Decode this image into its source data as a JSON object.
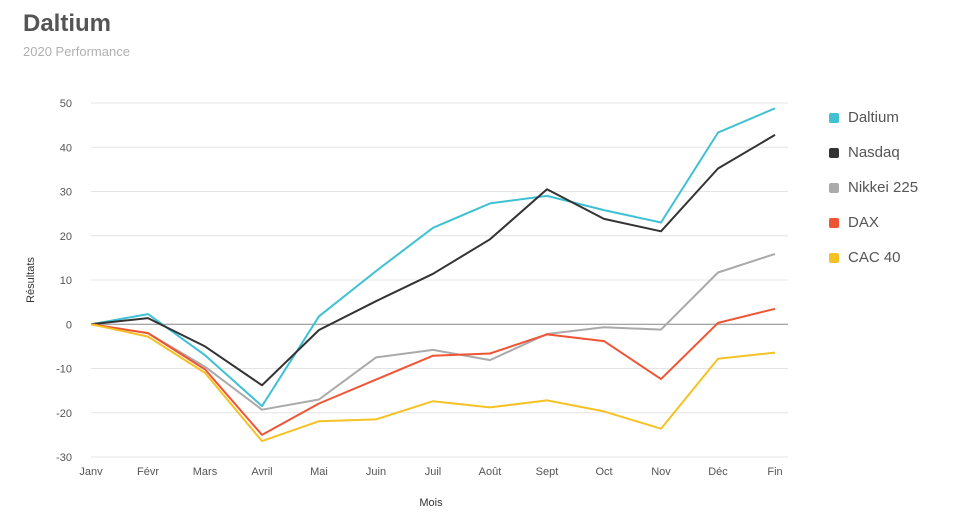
{
  "header": {
    "title": "Daltium",
    "subtitle": "2020 Performance"
  },
  "chart_data": {
    "type": "line",
    "title": "Daltium",
    "subtitle": "2020 Performance",
    "xlabel": "Mois",
    "ylabel": "Résultats",
    "categories": [
      "Janv",
      "Févr",
      "Mars",
      "Avril",
      "Mai",
      "Juin",
      "Juil",
      "Août",
      "Sept",
      "Oct",
      "Nov",
      "Déc",
      "Fin"
    ],
    "ylim": [
      -30,
      50
    ],
    "yticks": [
      50,
      40,
      30,
      20,
      10,
      0,
      -10,
      -20,
      -30
    ],
    "grid": true,
    "legend_position": "right",
    "series": [
      {
        "name": "Daltium",
        "color": "#3fc1d3",
        "values": [
          0,
          2.3,
          -7,
          -18.5,
          1.8,
          12,
          21.8,
          27.3,
          29,
          25.8,
          23,
          43.3,
          48.8
        ]
      },
      {
        "name": "Nasdaq",
        "color": "#333333",
        "values": [
          0,
          1.4,
          -5,
          -13.8,
          -1.3,
          5.2,
          11.4,
          19.2,
          30.5,
          23.8,
          21,
          35.2,
          42.8
        ]
      },
      {
        "name": "Nikkei 225",
        "color": "#aaaaaa",
        "values": [
          0,
          -2,
          -9.6,
          -19.3,
          -17,
          -7.5,
          -5.8,
          -8.1,
          -2.2,
          -0.7,
          -1.2,
          11.7,
          15.9
        ]
      },
      {
        "name": "DAX",
        "color": "#ef5535",
        "values": [
          0,
          -2,
          -10.2,
          -25,
          -17.9,
          -12.5,
          -7.1,
          -6.6,
          -2.3,
          -3.8,
          -12.4,
          0.3,
          3.5
        ]
      },
      {
        "name": "CAC 40",
        "color": "#f5c225",
        "values": [
          0,
          -2.8,
          -11,
          -26.4,
          -21.9,
          -21.5,
          -17.4,
          -18.8,
          -17.2,
          -19.7,
          -23.6,
          -7.8,
          -6.4
        ]
      }
    ]
  }
}
